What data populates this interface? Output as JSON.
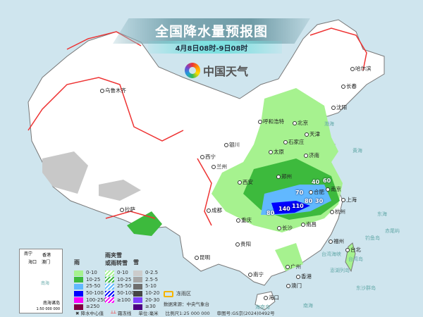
{
  "title": "全国降水量预报图",
  "subtitle": "4月8日08时-9日08时",
  "logo": {
    "text": "中国天气"
  },
  "cities": [
    "乌鲁木齐",
    "哈尔滨",
    "长春",
    "沈阳",
    "呼和浩特",
    "北京",
    "天津",
    "石家庄",
    "太原",
    "济南",
    "银川",
    "西宁",
    "兰州",
    "西安",
    "郑州",
    "合肥",
    "南京",
    "上海",
    "杭州",
    "长沙",
    "南昌",
    "重庆",
    "成都",
    "贵阳",
    "昆明",
    "拉萨",
    "南宁",
    "广州",
    "香港",
    "澳门",
    "海口",
    "台北",
    "福州"
  ],
  "geo_labels": [
    "渤海",
    "黄海",
    "东海",
    "台湾海峡",
    "台湾岛",
    "钓鱼岛",
    "赤尾屿",
    "澎湖列岛",
    "东沙群岛",
    "海南岛",
    "南海"
  ],
  "rain_center_values": [
    "40",
    "70",
    "110",
    "140",
    "80",
    "80",
    "30",
    "60"
  ],
  "inset": {
    "labels": [
      "南宁",
      "香港",
      "海口",
      "澳门",
      "南海"
    ],
    "title": "南海诸岛",
    "scale": "1:50 000 000"
  },
  "legend": {
    "rain": {
      "title": "雨",
      "items": [
        {
          "label": "0-10",
          "color": "#a6f28f"
        },
        {
          "label": "10-25",
          "color": "#3dba3d"
        },
        {
          "label": "25-50",
          "color": "#61b8ff"
        },
        {
          "label": "50-100",
          "color": "#0000ff"
        },
        {
          "label": "100-250",
          "color": "#fa00fa"
        },
        {
          "label": "≥250",
          "color": "#800040"
        }
      ]
    },
    "mixed": {
      "title": "雨夹雪\n或雨转雪",
      "title1": "雨夹雪",
      "title2": "或雨转雪",
      "items": [
        {
          "label": "0-10",
          "color": "#a6f28f"
        },
        {
          "label": "10-25",
          "color": "#3dba3d"
        },
        {
          "label": "25-50",
          "color": "#61b8ff"
        },
        {
          "label": "50-100",
          "color": "#0000ff"
        },
        {
          "label": "≥100",
          "color": "#fa00fa"
        }
      ]
    },
    "snow": {
      "title": "雪",
      "items": [
        {
          "label": "0-2.5",
          "color": "#cccccc"
        },
        {
          "label": "2.5-5",
          "color": "#a6a6a6"
        },
        {
          "label": "5-10",
          "color": "#6e6e6e"
        },
        {
          "label": "10-20",
          "color": "#454545"
        },
        {
          "label": "20-30",
          "color": "#7f3fff"
        },
        {
          "label": "≥30",
          "color": "#4b0082"
        }
      ]
    },
    "freezing_rain": "冻雨区",
    "source": "数据来源：中央气象台",
    "center_value": "降水中心值",
    "frost_line": "霜冻线",
    "unit": "单位:毫米",
    "scale": "比例尺1:25 000 000",
    "approval": "审图号:GS京(2024)0492号"
  }
}
